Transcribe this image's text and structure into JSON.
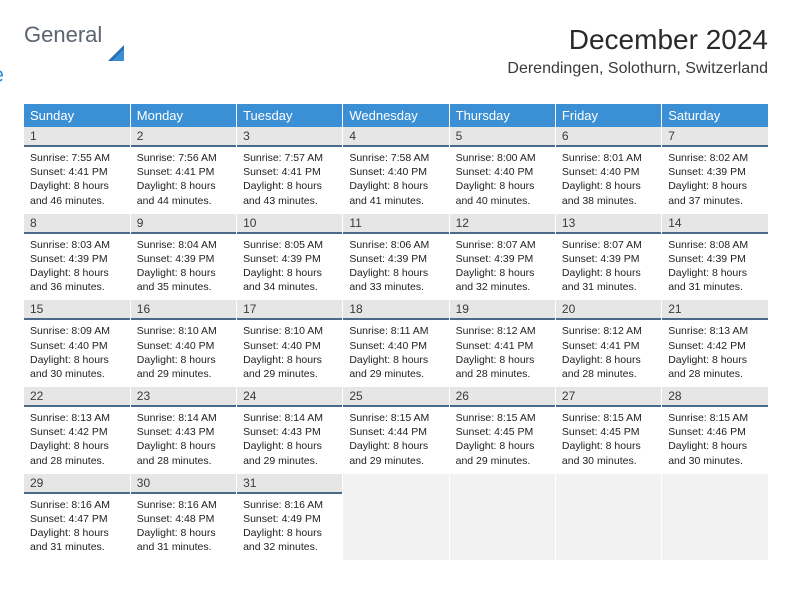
{
  "logo": {
    "text1": "General",
    "text2": "Blue"
  },
  "title": "December 2024",
  "subtitle": "Derendingen, Solothurn, Switzerland",
  "colors": {
    "header_bg": "#3b8fd4",
    "header_text": "#ffffff",
    "daynum_bg": "#e6e6e6",
    "daynum_border": "#4a6a8a",
    "body_text": "#222222",
    "empty_bg": "#f2f2f2",
    "logo_gray": "#5a6570",
    "logo_blue": "#3b8fd4"
  },
  "weekdays": [
    "Sunday",
    "Monday",
    "Tuesday",
    "Wednesday",
    "Thursday",
    "Friday",
    "Saturday"
  ],
  "weeks": [
    [
      {
        "n": "1",
        "sunrise": "7:55 AM",
        "sunset": "4:41 PM",
        "daylight": "8 hours and 46 minutes."
      },
      {
        "n": "2",
        "sunrise": "7:56 AM",
        "sunset": "4:41 PM",
        "daylight": "8 hours and 44 minutes."
      },
      {
        "n": "3",
        "sunrise": "7:57 AM",
        "sunset": "4:41 PM",
        "daylight": "8 hours and 43 minutes."
      },
      {
        "n": "4",
        "sunrise": "7:58 AM",
        "sunset": "4:40 PM",
        "daylight": "8 hours and 41 minutes."
      },
      {
        "n": "5",
        "sunrise": "8:00 AM",
        "sunset": "4:40 PM",
        "daylight": "8 hours and 40 minutes."
      },
      {
        "n": "6",
        "sunrise": "8:01 AM",
        "sunset": "4:40 PM",
        "daylight": "8 hours and 38 minutes."
      },
      {
        "n": "7",
        "sunrise": "8:02 AM",
        "sunset": "4:39 PM",
        "daylight": "8 hours and 37 minutes."
      }
    ],
    [
      {
        "n": "8",
        "sunrise": "8:03 AM",
        "sunset": "4:39 PM",
        "daylight": "8 hours and 36 minutes."
      },
      {
        "n": "9",
        "sunrise": "8:04 AM",
        "sunset": "4:39 PM",
        "daylight": "8 hours and 35 minutes."
      },
      {
        "n": "10",
        "sunrise": "8:05 AM",
        "sunset": "4:39 PM",
        "daylight": "8 hours and 34 minutes."
      },
      {
        "n": "11",
        "sunrise": "8:06 AM",
        "sunset": "4:39 PM",
        "daylight": "8 hours and 33 minutes."
      },
      {
        "n": "12",
        "sunrise": "8:07 AM",
        "sunset": "4:39 PM",
        "daylight": "8 hours and 32 minutes."
      },
      {
        "n": "13",
        "sunrise": "8:07 AM",
        "sunset": "4:39 PM",
        "daylight": "8 hours and 31 minutes."
      },
      {
        "n": "14",
        "sunrise": "8:08 AM",
        "sunset": "4:39 PM",
        "daylight": "8 hours and 31 minutes."
      }
    ],
    [
      {
        "n": "15",
        "sunrise": "8:09 AM",
        "sunset": "4:40 PM",
        "daylight": "8 hours and 30 minutes."
      },
      {
        "n": "16",
        "sunrise": "8:10 AM",
        "sunset": "4:40 PM",
        "daylight": "8 hours and 29 minutes."
      },
      {
        "n": "17",
        "sunrise": "8:10 AM",
        "sunset": "4:40 PM",
        "daylight": "8 hours and 29 minutes."
      },
      {
        "n": "18",
        "sunrise": "8:11 AM",
        "sunset": "4:40 PM",
        "daylight": "8 hours and 29 minutes."
      },
      {
        "n": "19",
        "sunrise": "8:12 AM",
        "sunset": "4:41 PM",
        "daylight": "8 hours and 28 minutes."
      },
      {
        "n": "20",
        "sunrise": "8:12 AM",
        "sunset": "4:41 PM",
        "daylight": "8 hours and 28 minutes."
      },
      {
        "n": "21",
        "sunrise": "8:13 AM",
        "sunset": "4:42 PM",
        "daylight": "8 hours and 28 minutes."
      }
    ],
    [
      {
        "n": "22",
        "sunrise": "8:13 AM",
        "sunset": "4:42 PM",
        "daylight": "8 hours and 28 minutes."
      },
      {
        "n": "23",
        "sunrise": "8:14 AM",
        "sunset": "4:43 PM",
        "daylight": "8 hours and 28 minutes."
      },
      {
        "n": "24",
        "sunrise": "8:14 AM",
        "sunset": "4:43 PM",
        "daylight": "8 hours and 29 minutes."
      },
      {
        "n": "25",
        "sunrise": "8:15 AM",
        "sunset": "4:44 PM",
        "daylight": "8 hours and 29 minutes."
      },
      {
        "n": "26",
        "sunrise": "8:15 AM",
        "sunset": "4:45 PM",
        "daylight": "8 hours and 29 minutes."
      },
      {
        "n": "27",
        "sunrise": "8:15 AM",
        "sunset": "4:45 PM",
        "daylight": "8 hours and 30 minutes."
      },
      {
        "n": "28",
        "sunrise": "8:15 AM",
        "sunset": "4:46 PM",
        "daylight": "8 hours and 30 minutes."
      }
    ],
    [
      {
        "n": "29",
        "sunrise": "8:16 AM",
        "sunset": "4:47 PM",
        "daylight": "8 hours and 31 minutes."
      },
      {
        "n": "30",
        "sunrise": "8:16 AM",
        "sunset": "4:48 PM",
        "daylight": "8 hours and 31 minutes."
      },
      {
        "n": "31",
        "sunrise": "8:16 AM",
        "sunset": "4:49 PM",
        "daylight": "8 hours and 32 minutes."
      },
      null,
      null,
      null,
      null
    ]
  ],
  "labels": {
    "sunrise": "Sunrise:",
    "sunset": "Sunset:",
    "daylight": "Daylight:"
  }
}
